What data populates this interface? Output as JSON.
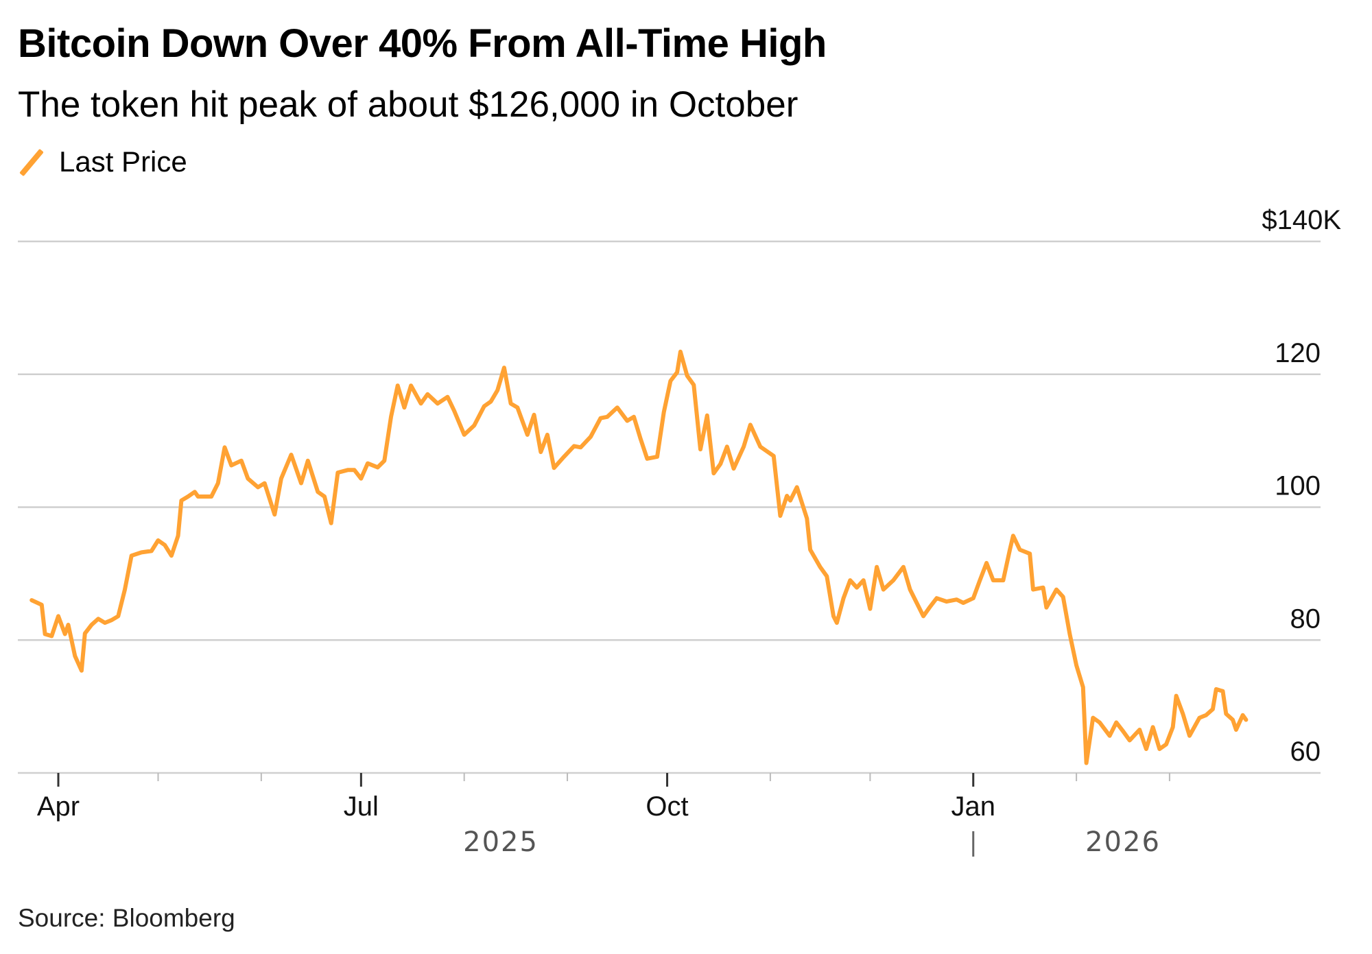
{
  "chart_data": {
    "type": "line",
    "title": "Bitcoin Down Over 40% From All-Time High",
    "subtitle": "The token hit peak of about $126,000 in October",
    "source": "Source: Bloomberg",
    "legend": [
      {
        "name": "Last Price",
        "color": "#ffa233"
      }
    ],
    "legend_placement": "top-left",
    "xlabel": "",
    "ylabel": "",
    "y_unit_label": "$140K",
    "ylim": [
      60,
      140
    ],
    "y_ticks": [
      60,
      80,
      100,
      120,
      140
    ],
    "y_tick_labels": [
      "60",
      "80",
      "100",
      "120",
      "$140K"
    ],
    "grid": true,
    "x_ticks": [
      {
        "label": "Apr",
        "day": 0,
        "major": true
      },
      {
        "label": "",
        "day": 30,
        "major": false
      },
      {
        "label": "",
        "day": 61,
        "major": false
      },
      {
        "label": "Jul",
        "day": 91,
        "major": true
      },
      {
        "label": "",
        "day": 122,
        "major": false
      },
      {
        "label": "",
        "day": 153,
        "major": false
      },
      {
        "label": "Oct",
        "day": 183,
        "major": true
      },
      {
        "label": "",
        "day": 214,
        "major": false
      },
      {
        "label": "",
        "day": 244,
        "major": false
      },
      {
        "label": "Jan",
        "day": 275,
        "major": true
      },
      {
        "label": "",
        "day": 306,
        "major": false
      },
      {
        "label": "",
        "day": 334,
        "major": false
      }
    ],
    "year_labels": [
      {
        "label": "2025",
        "day": 133
      },
      {
        "label": "2026",
        "day": 320
      }
    ],
    "year_divider_day": 275,
    "x_range_days": [
      -12,
      354
    ],
    "x_origin": "2025-04-01",
    "series": [
      {
        "name": "Last Price",
        "color": "#ffa233",
        "points": [
          [
            -8,
            86.0
          ],
          [
            -5,
            85.3
          ],
          [
            -4,
            80.9
          ],
          [
            -2,
            80.6
          ],
          [
            0,
            83.6
          ],
          [
            2,
            80.9
          ],
          [
            3,
            82.3
          ],
          [
            5,
            77.6
          ],
          [
            7,
            75.4
          ],
          [
            8,
            81.0
          ],
          [
            10,
            82.3
          ],
          [
            12,
            83.2
          ],
          [
            14,
            82.6
          ],
          [
            16,
            83.0
          ],
          [
            18,
            83.6
          ],
          [
            20,
            87.6
          ],
          [
            22,
            92.7
          ],
          [
            25,
            93.2
          ],
          [
            28,
            93.4
          ],
          [
            30,
            95.0
          ],
          [
            32,
            94.3
          ],
          [
            34,
            92.7
          ],
          [
            36,
            95.7
          ],
          [
            37,
            101.0
          ],
          [
            39,
            101.6
          ],
          [
            41,
            102.3
          ],
          [
            42,
            101.6
          ],
          [
            46,
            101.6
          ],
          [
            48,
            103.6
          ],
          [
            50,
            109.0
          ],
          [
            52,
            106.3
          ],
          [
            55,
            107.0
          ],
          [
            57,
            104.3
          ],
          [
            60,
            103.0
          ],
          [
            62,
            103.6
          ],
          [
            65,
            98.9
          ],
          [
            67,
            104.3
          ],
          [
            70,
            107.9
          ],
          [
            73,
            103.6
          ],
          [
            75,
            107.0
          ],
          [
            78,
            102.3
          ],
          [
            80,
            101.6
          ],
          [
            82,
            97.6
          ],
          [
            84,
            105.2
          ],
          [
            87,
            105.6
          ],
          [
            89,
            105.6
          ],
          [
            91,
            104.3
          ],
          [
            93,
            106.6
          ],
          [
            96,
            106.0
          ],
          [
            98,
            107.0
          ],
          [
            100,
            113.6
          ],
          [
            102,
            118.3
          ],
          [
            104,
            115.0
          ],
          [
            106,
            118.3
          ],
          [
            109,
            115.6
          ],
          [
            111,
            117.0
          ],
          [
            114,
            115.6
          ],
          [
            117,
            116.6
          ],
          [
            119,
            114.5
          ],
          [
            122,
            110.9
          ],
          [
            125,
            112.3
          ],
          [
            128,
            115.2
          ],
          [
            130,
            115.9
          ],
          [
            132,
            117.6
          ],
          [
            134,
            121.0
          ],
          [
            136,
            115.6
          ],
          [
            138,
            115.0
          ],
          [
            141,
            110.9
          ],
          [
            143,
            113.9
          ],
          [
            145,
            108.3
          ],
          [
            147,
            110.9
          ],
          [
            149,
            105.9
          ],
          [
            152,
            107.6
          ],
          [
            155,
            109.2
          ],
          [
            157,
            109.0
          ],
          [
            160,
            110.6
          ],
          [
            163,
            113.4
          ],
          [
            165,
            113.6
          ],
          [
            168,
            115.0
          ],
          [
            171,
            113.0
          ],
          [
            173,
            113.6
          ],
          [
            175,
            110.3
          ],
          [
            177,
            107.3
          ],
          [
            180,
            107.6
          ],
          [
            182,
            114.3
          ],
          [
            184,
            119.0
          ],
          [
            186,
            120.3
          ],
          [
            187,
            123.4
          ],
          [
            189,
            119.8
          ],
          [
            191,
            118.4
          ],
          [
            193,
            108.7
          ],
          [
            195,
            113.8
          ],
          [
            197,
            105.1
          ],
          [
            199,
            106.5
          ],
          [
            201,
            109.1
          ],
          [
            203,
            105.8
          ],
          [
            206,
            109.1
          ],
          [
            208,
            112.4
          ],
          [
            211,
            109.1
          ],
          [
            213,
            108.4
          ],
          [
            215,
            107.7
          ],
          [
            217,
            98.7
          ],
          [
            219,
            101.7
          ],
          [
            220,
            101.0
          ],
          [
            222,
            103.0
          ],
          [
            225,
            98.3
          ],
          [
            226,
            93.6
          ],
          [
            229,
            91.0
          ],
          [
            231,
            89.6
          ],
          [
            233,
            83.6
          ],
          [
            234,
            82.6
          ],
          [
            236,
            86.3
          ],
          [
            238,
            89.0
          ],
          [
            240,
            87.9
          ],
          [
            242,
            89.0
          ],
          [
            244,
            84.7
          ],
          [
            246,
            91.0
          ],
          [
            248,
            87.6
          ],
          [
            251,
            89.0
          ],
          [
            254,
            91.0
          ],
          [
            256,
            87.6
          ],
          [
            258,
            85.6
          ],
          [
            260,
            83.6
          ],
          [
            262,
            85.0
          ],
          [
            264,
            86.3
          ],
          [
            267,
            85.8
          ],
          [
            270,
            86.1
          ],
          [
            272,
            85.6
          ],
          [
            275,
            86.3
          ],
          [
            277,
            89.0
          ],
          [
            279,
            91.6
          ],
          [
            281,
            89.0
          ],
          [
            284,
            89.0
          ],
          [
            286,
            93.6
          ],
          [
            287,
            95.7
          ],
          [
            289,
            93.6
          ],
          [
            292,
            93.0
          ],
          [
            293,
            87.6
          ],
          [
            296,
            87.9
          ],
          [
            297,
            84.9
          ],
          [
            300,
            87.6
          ],
          [
            302,
            86.5
          ],
          [
            304,
            80.9
          ],
          [
            306,
            76.2
          ],
          [
            308,
            72.9
          ],
          [
            309,
            61.5
          ],
          [
            311,
            68.3
          ],
          [
            313,
            67.6
          ],
          [
            316,
            65.6
          ],
          [
            318,
            67.6
          ],
          [
            320,
            66.3
          ],
          [
            322,
            64.9
          ],
          [
            325,
            66.5
          ],
          [
            327,
            63.6
          ],
          [
            329,
            66.9
          ],
          [
            331,
            63.6
          ],
          [
            333,
            64.3
          ],
          [
            335,
            66.9
          ],
          [
            336,
            71.6
          ],
          [
            338,
            68.9
          ],
          [
            340,
            65.6
          ],
          [
            343,
            68.3
          ],
          [
            345,
            68.7
          ],
          [
            347,
            69.6
          ],
          [
            348,
            72.6
          ],
          [
            350,
            72.3
          ],
          [
            351,
            68.9
          ],
          [
            353,
            68.0
          ],
          [
            354,
            66.5
          ],
          [
            356,
            68.7
          ],
          [
            357,
            68.0
          ]
        ]
      }
    ]
  }
}
